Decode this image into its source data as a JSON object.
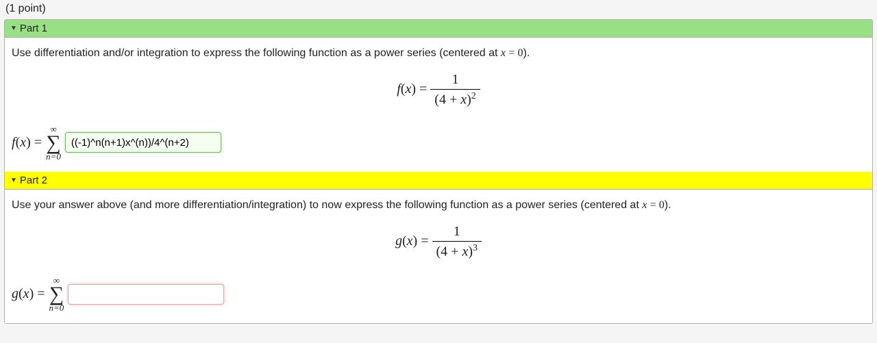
{
  "points_label": "(1 point)",
  "colors": {
    "page_bg": "#f5f5f5",
    "part1_header_bg": "#99e085",
    "part2_header_bg": "#ffff00",
    "border": "#b0b0b0",
    "input_correct_border": "#6cbf5a",
    "input_correct_bg": "#f4fff0",
    "input_active_border": "#e8a0a0"
  },
  "part1": {
    "label": "Part 1",
    "prompt_pre": "Use differentiation and/or integration to express the following function as a power series (centered at ",
    "prompt_math": "x = 0",
    "prompt_post": ").",
    "equation": {
      "lhs": "f(x) =",
      "numerator": "1",
      "denominator_base": "(4 + x)",
      "denominator_exp": "2"
    },
    "answer": {
      "lhs": "f(x) =",
      "sum_upper": "∞",
      "sum_lower": "n=0",
      "input_value": "((-1)^n(n+1)x^(n))/4^(n+2)",
      "state": "correct"
    }
  },
  "part2": {
    "label": "Part 2",
    "prompt_pre": "Use your answer above (and more differentiation/integration) to now express the following function as a power series (centered at ",
    "prompt_math": "x = 0",
    "prompt_post": ").",
    "equation": {
      "lhs": "g(x) =",
      "numerator": "1",
      "denominator_base": "(4 + x)",
      "denominator_exp": "3"
    },
    "answer": {
      "lhs": "g(x) =",
      "sum_upper": "∞",
      "sum_lower": "n=0",
      "input_value": "",
      "state": "active"
    }
  }
}
